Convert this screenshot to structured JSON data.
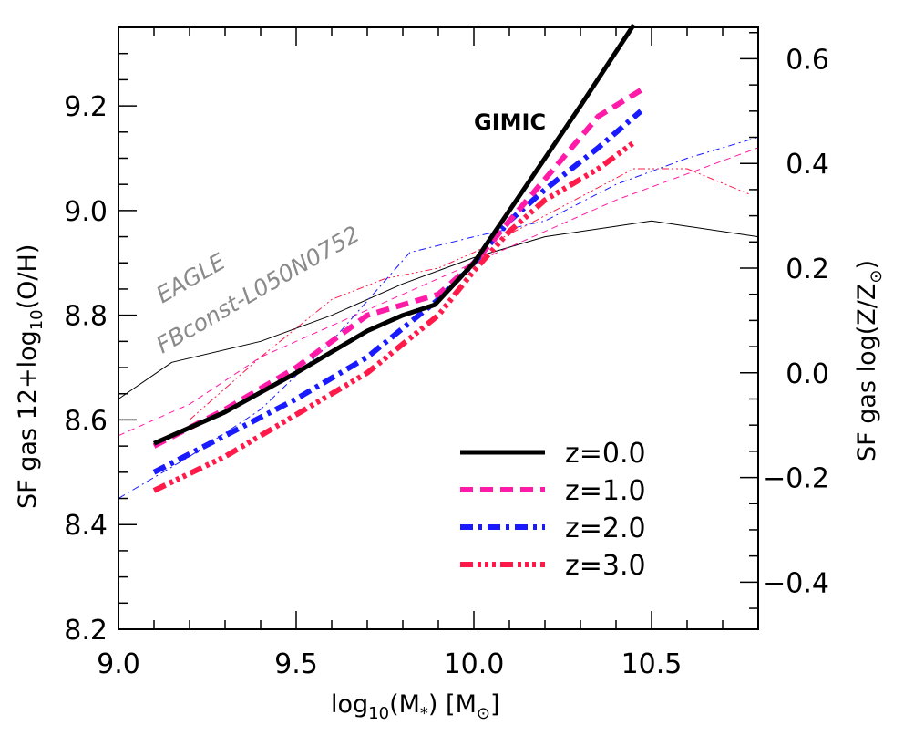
{
  "chart_data": {
    "type": "line",
    "xlabel_main": "log",
    "xlabel_sub": "10",
    "xlabel_rest": "(M",
    "xlabel_star": "*",
    "xlabel_unit": ")  [M",
    "xlabel_sun": "⊙",
    "xlabel_close": "]",
    "ylabel_pre": "SF gas  12+log",
    "ylabel_sub": "10",
    "ylabel_post": "(O/H)",
    "y2label_pre": "SF gas  log(Z/Z",
    "y2label_sun": "⊙",
    "y2label_post": ")",
    "xlim": [
      9.0,
      10.8
    ],
    "ylim": [
      8.2,
      9.35
    ],
    "y2_offset": 8.69,
    "x_ticks": [
      "9.0",
      "9.5",
      "10.0",
      "10.5"
    ],
    "y_ticks": [
      "8.2",
      "8.4",
      "8.6",
      "8.8",
      "9.0",
      "9.2"
    ],
    "y2_ticks": [
      "−0.4",
      "−0.2",
      "0.0",
      "0.2",
      "0.4",
      "0.6"
    ],
    "annotations": {
      "eagle": "EAGLE",
      "model": "FBconst-L050N0752",
      "gimic": "GIMIC"
    },
    "series": [
      {
        "name": "z=0.0",
        "color": "#000000",
        "style": "solid",
        "x": [
          9.1,
          9.3,
          9.5,
          9.7,
          9.8,
          9.89,
          10.0,
          10.1,
          10.3,
          10.45
        ],
        "y": [
          8.555,
          8.615,
          8.69,
          8.77,
          8.8,
          8.82,
          8.9,
          9.0,
          9.2,
          9.355
        ]
      },
      {
        "name": "z=1.0",
        "color": "#ff1aa8",
        "style": "dash",
        "x": [
          9.1,
          9.3,
          9.5,
          9.7,
          9.9,
          10.0,
          10.1,
          10.2,
          10.35,
          10.47
        ],
        "y": [
          8.55,
          8.62,
          8.7,
          8.8,
          8.84,
          8.9,
          8.98,
          9.06,
          9.18,
          9.23
        ]
      },
      {
        "name": "z=2.0",
        "color": "#1a1aff",
        "style": "dashdot",
        "x": [
          9.1,
          9.3,
          9.5,
          9.7,
          9.9,
          10.0,
          10.1,
          10.2,
          10.35,
          10.47
        ],
        "y": [
          8.5,
          8.57,
          8.64,
          8.72,
          8.83,
          8.9,
          8.98,
          9.04,
          9.12,
          9.19
        ]
      },
      {
        "name": "z=3.0",
        "color": "#ff1a4a",
        "style": "dashdot3",
        "x": [
          9.1,
          9.3,
          9.5,
          9.7,
          9.9,
          10.0,
          10.1,
          10.2,
          10.35,
          10.45
        ],
        "y": [
          8.465,
          8.53,
          8.61,
          8.69,
          8.8,
          8.885,
          8.96,
          9.02,
          9.08,
          9.13
        ]
      }
    ],
    "eagle_series": [
      {
        "name": "z=0.0",
        "color": "#000000",
        "style": "solid",
        "x": [
          9.0,
          9.15,
          9.4,
          9.6,
          9.8,
          10.0,
          10.2,
          10.4,
          10.5,
          10.6,
          10.8
        ],
        "y": [
          8.64,
          8.71,
          8.75,
          8.8,
          8.86,
          8.91,
          8.95,
          8.97,
          8.98,
          8.97,
          8.95
        ]
      },
      {
        "name": "z=1.0",
        "color": "#ff1aa8",
        "style": "dash",
        "x": [
          9.0,
          9.2,
          9.4,
          9.6,
          9.8,
          10.0,
          10.2,
          10.4,
          10.6,
          10.8
        ],
        "y": [
          8.57,
          8.63,
          8.72,
          8.78,
          8.84,
          8.9,
          8.96,
          9.02,
          9.07,
          9.12
        ]
      },
      {
        "name": "z=2.0",
        "color": "#1a1aff",
        "style": "dashdot",
        "x": [
          9.0,
          9.2,
          9.4,
          9.6,
          9.82,
          10.0,
          10.2,
          10.4,
          10.6,
          10.8
        ],
        "y": [
          8.45,
          8.53,
          8.62,
          8.75,
          8.92,
          8.95,
          8.98,
          9.05,
          9.1,
          9.14
        ]
      },
      {
        "name": "z=3.0",
        "color": "#ff1a4a",
        "style": "dashdot3",
        "x": [
          9.2,
          9.4,
          9.6,
          9.75,
          9.9,
          10.0,
          10.2,
          10.45,
          10.6,
          10.78
        ],
        "y": [
          8.6,
          8.72,
          8.83,
          8.87,
          8.89,
          8.92,
          8.99,
          9.08,
          9.08,
          9.03
        ]
      }
    ]
  }
}
